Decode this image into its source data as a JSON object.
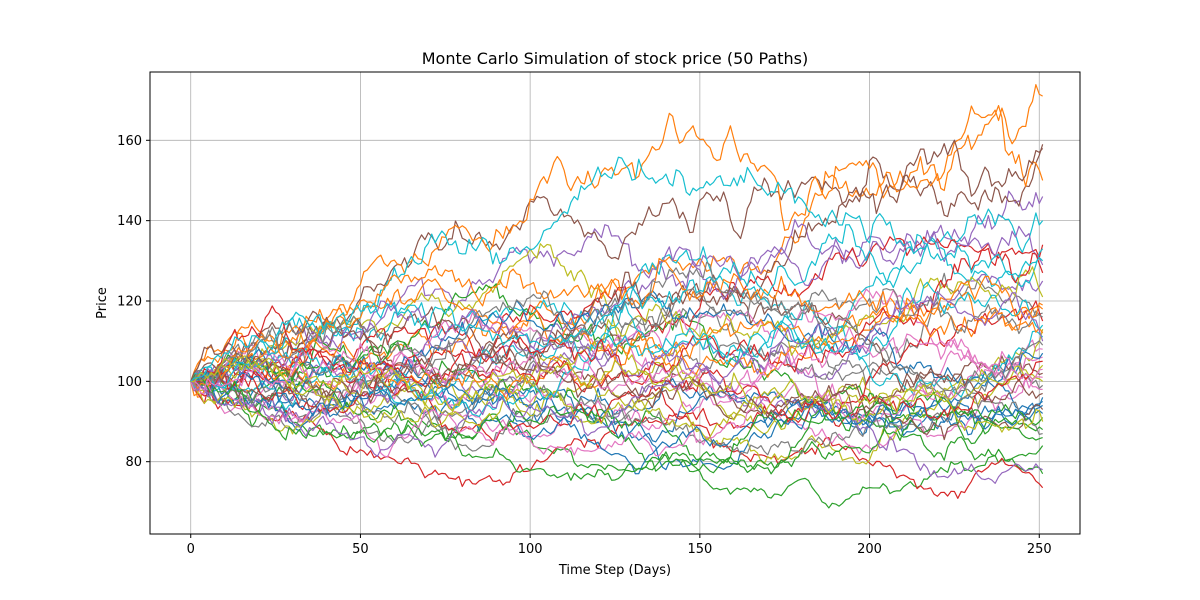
{
  "chart_data": {
    "type": "line",
    "title": "Monte Carlo Simulation of stock price (50 Paths)",
    "xlabel": "Time Step (Days)",
    "ylabel": "Price",
    "xlim": [
      -12,
      262
    ],
    "ylim": [
      62,
      177
    ],
    "xticks": [
      0,
      50,
      100,
      150,
      200,
      250
    ],
    "yticks": [
      80,
      100,
      120,
      140,
      160
    ],
    "grid": true,
    "legend": "none",
    "n_steps": 252,
    "start_price": 100,
    "palette": [
      "#1f77b4",
      "#ff7f0e",
      "#2ca02c",
      "#d62728",
      "#9467bd",
      "#8c564b",
      "#e377c2",
      "#7f7f7f",
      "#bcbd22",
      "#17becf"
    ],
    "series_final_values": [
      96,
      171,
      77,
      73.5,
      146,
      159,
      98,
      117,
      104,
      140,
      95,
      150,
      84,
      134,
      125,
      158,
      108,
      99,
      113,
      133,
      92,
      118,
      88,
      115,
      129,
      102,
      106,
      87,
      121,
      111,
      107,
      112,
      91,
      127,
      78,
      93,
      103,
      116,
      100,
      114,
      94,
      119,
      86,
      105,
      110,
      97,
      101,
      109,
      90,
      130
    ]
  }
}
